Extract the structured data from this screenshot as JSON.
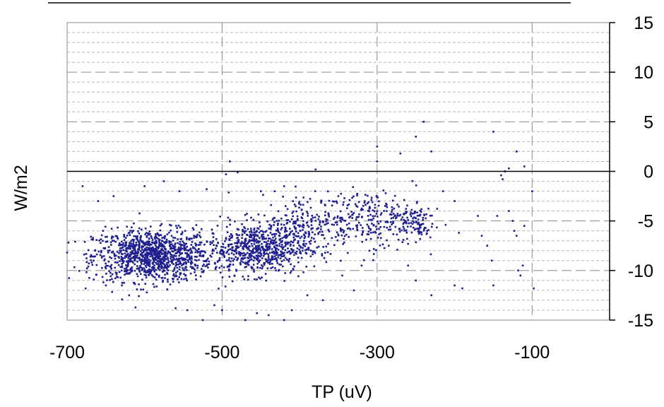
{
  "chart_data": {
    "type": "scatter",
    "title": "",
    "xlabel": "TP (uV)",
    "ylabel": "W/m2",
    "xlim": [
      -700,
      0
    ],
    "ylim": [
      -15,
      15
    ],
    "x_ticks": [
      -700,
      -500,
      -300,
      -100
    ],
    "x_tick_labels": [
      "-700",
      "-500",
      "-300",
      "-100"
    ],
    "y_ticks": [
      15,
      10,
      5,
      0,
      -5,
      -10,
      -15
    ],
    "y_tick_labels": [
      "15",
      "10",
      "5",
      "0",
      "-5",
      "-10",
      "-15"
    ],
    "y_axis_position": "right",
    "grid": true,
    "legend": "none",
    "marker_color": "#1f1f8f",
    "series": [
      {
        "clusters": [
          {
            "x_center": -590,
            "y_center": -8.5,
            "x_spread": 38,
            "y_spread": 1.3,
            "count": 1100
          },
          {
            "x_center": -455,
            "y_center": -7.8,
            "x_spread": 32,
            "y_spread": 1.3,
            "count": 650
          },
          {
            "x_center": -390,
            "y_center": -5.5,
            "x_spread": 30,
            "y_spread": 1.6,
            "count": 220
          },
          {
            "x_center": -310,
            "y_center": -4.8,
            "x_spread": 35,
            "y_spread": 1.4,
            "count": 240
          },
          {
            "x_center": -255,
            "y_center": -5.0,
            "x_spread": 15,
            "y_spread": 1.0,
            "count": 90
          }
        ],
        "points": [
          [
            -680,
            -1.5
          ],
          [
            -520,
            -1.8
          ],
          [
            -490,
            1.0
          ],
          [
            -300,
            2.5
          ],
          [
            -250,
            3.5
          ],
          [
            -240,
            5.0
          ],
          [
            -230,
            2.0
          ],
          [
            -300,
            1.0
          ],
          [
            -270,
            1.8
          ],
          [
            -150,
            4.0
          ],
          [
            -130,
            0.3
          ],
          [
            -120,
            2.0
          ],
          [
            -110,
            0.5
          ],
          [
            -135,
            0.0
          ],
          [
            -140,
            -0.4
          ],
          [
            -138,
            -0.8
          ],
          [
            -215,
            -2.0
          ],
          [
            -200,
            -3.0
          ],
          [
            -170,
            -4.5
          ],
          [
            -165,
            -6.5
          ],
          [
            -158,
            -7.5
          ],
          [
            -152,
            -9.0
          ],
          [
            -125,
            -5.0
          ],
          [
            -123,
            -6.0
          ],
          [
            -120,
            -6.5
          ],
          [
            -118,
            -10.0
          ],
          [
            -115,
            -10.5
          ],
          [
            -112,
            -9.5
          ],
          [
            -110,
            -5.5
          ],
          [
            -100,
            -2.0
          ],
          [
            -98,
            -11.8
          ],
          [
            -130,
            -4.0
          ],
          [
            -145,
            -4.5
          ],
          [
            -150,
            -11.5
          ],
          [
            -190,
            -11.8
          ],
          [
            -200,
            -11.5
          ],
          [
            -230,
            -12.5
          ],
          [
            -250,
            -11.0
          ],
          [
            -260,
            -9.5
          ],
          [
            -285,
            -7.5
          ],
          [
            -310,
            -8.0
          ],
          [
            -320,
            -9.5
          ],
          [
            -330,
            -12.0
          ],
          [
            -345,
            -10.5
          ],
          [
            -370,
            -13.0
          ],
          [
            -390,
            -12.5
          ],
          [
            -410,
            -14.0
          ],
          [
            -420,
            -15.0
          ],
          [
            -440,
            -14.5
          ],
          [
            -455,
            -14.3
          ],
          [
            -470,
            -15.0
          ],
          [
            -500,
            -14.0
          ],
          [
            -510,
            -13.5
          ],
          [
            -525,
            -15.0
          ],
          [
            -545,
            -14.0
          ],
          [
            -560,
            -13.8
          ],
          [
            -620,
            -12.5
          ],
          [
            -650,
            -11.5
          ],
          [
            -660,
            -3.0
          ],
          [
            -640,
            -2.5
          ],
          [
            -600,
            -1.5
          ],
          [
            -575,
            -1.0
          ],
          [
            -555,
            -2.0
          ],
          [
            -495,
            -0.3
          ],
          [
            -480,
            -0.1
          ],
          [
            -450,
            -2.0
          ],
          [
            -420,
            -1.5
          ],
          [
            -380,
            -2.0
          ],
          [
            -350,
            -2.5
          ]
        ]
      }
    ]
  }
}
